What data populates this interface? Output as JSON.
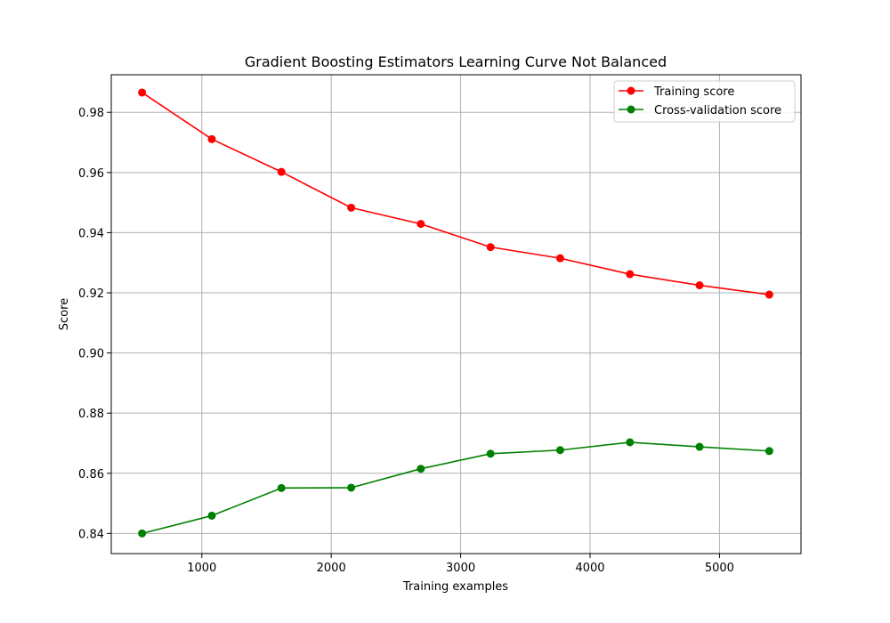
{
  "chart_data": {
    "type": "line",
    "title": "Gradient Boosting Estimators Learning Curve Not Balanced",
    "xlabel": "Training examples",
    "ylabel": "Score",
    "xlim": [
      300,
      5630
    ],
    "ylim": [
      0.8333,
      0.9925
    ],
    "xticks": [
      1000,
      2000,
      3000,
      4000,
      5000
    ],
    "xtick_labels": [
      "1000",
      "2000",
      "3000",
      "4000",
      "5000"
    ],
    "yticks": [
      0.84,
      0.86,
      0.88,
      0.9,
      0.92,
      0.94,
      0.96,
      0.98
    ],
    "ytick_labels": [
      "0.84",
      "0.86",
      "0.88",
      "0.90",
      "0.92",
      "0.94",
      "0.96",
      "0.98"
    ],
    "grid": true,
    "legend_position": "top-right",
    "x": [
      538,
      1077,
      1615,
      2154,
      2692,
      3231,
      3769,
      4308,
      4846,
      5385
    ],
    "series": [
      {
        "name": "Training score",
        "color": "#ff0000",
        "marker": "circle",
        "values": [
          0.9866,
          0.9711,
          0.9602,
          0.9483,
          0.9429,
          0.9352,
          0.9315,
          0.9262,
          0.9225,
          0.9194
        ]
      },
      {
        "name": "Cross-validation score",
        "color": "#008000",
        "marker": "circle",
        "values": [
          0.84,
          0.8459,
          0.8551,
          0.8552,
          0.8615,
          0.8665,
          0.8677,
          0.8703,
          0.8688,
          0.8674
        ]
      }
    ]
  }
}
